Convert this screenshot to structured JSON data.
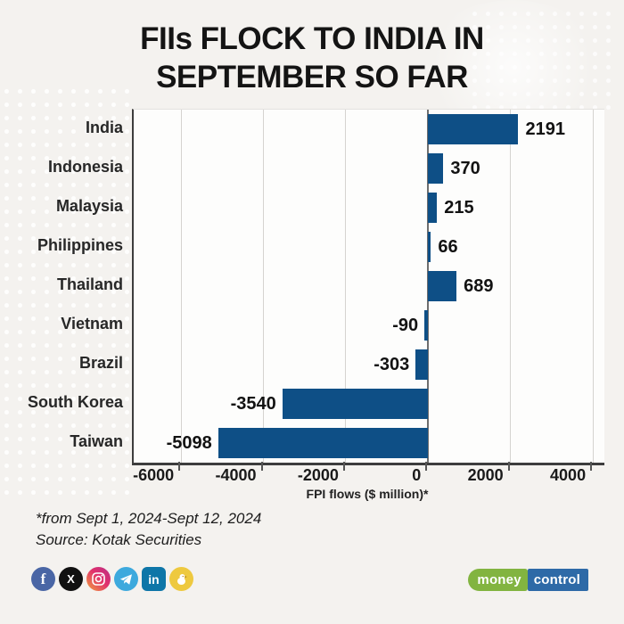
{
  "page": {
    "background": "#f4f2ef"
  },
  "title": {
    "line1": "FIIs FLOCK TO INDIA IN",
    "line2": "SEPTEMBER SO FAR"
  },
  "chart_data": {
    "type": "bar",
    "orientation": "horizontal",
    "categories": [
      "India",
      "Indonesia",
      "Malaysia",
      "Philippines",
      "Thailand",
      "Vietnam",
      "Brazil",
      "South Korea",
      "Taiwan"
    ],
    "values": [
      2191,
      370,
      215,
      66,
      689,
      -90,
      -303,
      -3540,
      -5098
    ],
    "title": "FIIs FLOCK TO INDIA IN SEPTEMBER SO FAR",
    "xlabel": "FPI flows ($ million)*",
    "ylabel": "",
    "xlim": [
      -7150,
      4280
    ],
    "xticks": [
      -6000,
      -4000,
      -2000,
      0,
      2000,
      4000
    ],
    "grid": true,
    "legend": false,
    "bar_color": "#0e4f86"
  },
  "footer": {
    "note": "*from Sept 1, 2024-Sept 12, 2024",
    "source": "Source: Kotak Securities"
  },
  "social": {
    "icons": [
      {
        "name": "facebook",
        "color": "#4a66a5",
        "glyph": "f"
      },
      {
        "name": "x-twitter",
        "color": "#111111",
        "glyph": "X"
      },
      {
        "name": "instagram",
        "color": "linear-gradient(45deg,#f2a33c 0%,#e1306c 55%,#b93088 100%)",
        "glyph": ""
      },
      {
        "name": "telegram",
        "color": "#3da9dd",
        "glyph": ""
      },
      {
        "name": "linkedin",
        "color": "#0e76a8",
        "glyph": "in"
      },
      {
        "name": "koo",
        "color": "#eec93f",
        "glyph": ""
      }
    ]
  },
  "brand": {
    "money": "money",
    "control": "control",
    "green": "#82b440",
    "blue": "#2e6aa7"
  }
}
